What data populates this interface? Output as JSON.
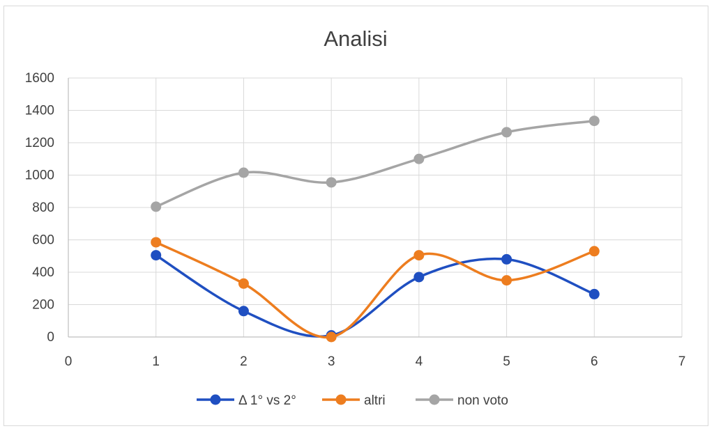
{
  "chart_data": {
    "type": "scatter",
    "title": "Analisi",
    "xlabel": "",
    "ylabel": "",
    "xlim": [
      0,
      7
    ],
    "ylim": [
      0,
      1600
    ],
    "xticks": [
      "0",
      "1",
      "2",
      "3",
      "4",
      "5",
      "6",
      "7"
    ],
    "yticks": [
      "0",
      "200",
      "400",
      "600",
      "800",
      "1000",
      "1200",
      "1400",
      "1600"
    ],
    "grid": true,
    "smooth_lines": true,
    "legend_position": "bottom",
    "x": [
      1,
      2,
      3,
      4,
      5,
      6
    ],
    "series": [
      {
        "name": "Δ 1° vs 2°",
        "color": "#1f4fc1",
        "values": [
          505,
          160,
          10,
          370,
          480,
          265
        ]
      },
      {
        "name": "altri",
        "color": "#ed7d1f",
        "values": [
          585,
          330,
          0,
          505,
          350,
          530
        ]
      },
      {
        "name": "non voto",
        "color": "#a5a5a5",
        "values": [
          805,
          1015,
          955,
          1100,
          1265,
          1335
        ]
      }
    ]
  }
}
